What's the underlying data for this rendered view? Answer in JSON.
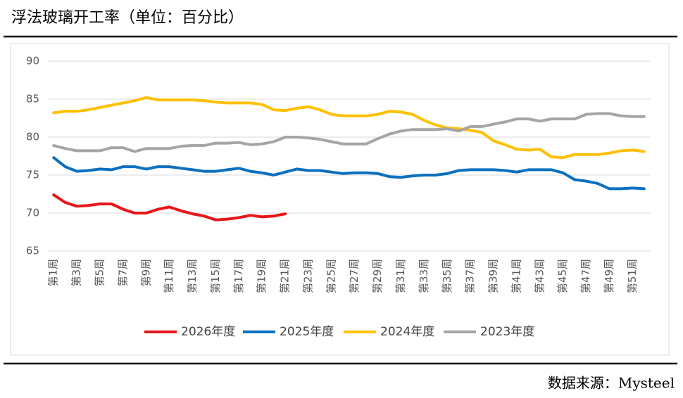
{
  "chart_data": {
    "type": "line",
    "title": "浮法玻璃开工率（单位：百分比）",
    "source": "数据来源：Mysteel",
    "categories": [
      "第1周",
      null,
      "第3周",
      null,
      "第5周",
      null,
      "第7周",
      null,
      "第9周",
      null,
      "第11周",
      null,
      "第13周",
      null,
      "第15周",
      null,
      "第17周",
      null,
      "第19周",
      null,
      "第21周",
      null,
      "第23周",
      null,
      "第25周",
      null,
      "第27周",
      null,
      "第29周",
      null,
      "第31周",
      null,
      "第33周",
      null,
      "第35周",
      null,
      "第37周",
      null,
      "第39周",
      null,
      "第41周",
      null,
      "第43周",
      null,
      "第45周",
      null,
      "第47周",
      null,
      "第49周",
      null,
      "第51周",
      null
    ],
    "series": [
      {
        "name": "2026年度",
        "color": "#e8161b",
        "values": [
          72.4,
          71.4,
          70.9,
          71.0,
          71.2,
          71.2,
          70.5,
          70.0,
          70.0,
          70.5,
          70.8,
          70.3,
          69.9,
          69.6,
          69.1,
          69.2,
          69.4,
          69.7,
          69.5,
          69.6,
          69.9,
          null,
          null,
          null,
          null,
          null,
          null,
          null,
          null,
          null,
          null,
          null,
          null,
          null,
          null,
          null,
          null,
          null,
          null,
          null,
          null,
          null,
          null,
          null,
          null,
          null,
          null,
          null,
          null,
          null,
          null,
          null
        ]
      },
      {
        "name": "2025年度",
        "color": "#0a70c0",
        "values": [
          77.3,
          76.1,
          75.5,
          75.6,
          75.8,
          75.7,
          76.1,
          76.1,
          75.8,
          76.1,
          76.1,
          75.9,
          75.7,
          75.5,
          75.5,
          75.7,
          75.9,
          75.5,
          75.3,
          75.0,
          75.4,
          75.8,
          75.6,
          75.6,
          75.4,
          75.2,
          75.3,
          75.3,
          75.2,
          74.8,
          74.7,
          74.9,
          75.0,
          75.0,
          75.2,
          75.6,
          75.7,
          75.7,
          75.7,
          75.6,
          75.4,
          75.7,
          75.7,
          75.7,
          75.3,
          74.4,
          74.2,
          73.9,
          73.2,
          73.2,
          73.3,
          73.2
        ]
      },
      {
        "name": "2024年度",
        "color": "#ffc000",
        "values": [
          83.2,
          83.4,
          83.4,
          83.6,
          83.9,
          84.2,
          84.5,
          84.8,
          85.2,
          84.9,
          84.9,
          84.9,
          84.9,
          84.8,
          84.6,
          84.5,
          84.5,
          84.5,
          84.3,
          83.6,
          83.5,
          83.8,
          84.0,
          83.6,
          83.0,
          82.8,
          82.8,
          82.8,
          83.0,
          83.4,
          83.3,
          83.0,
          82.2,
          81.6,
          81.2,
          81.1,
          80.9,
          80.6,
          79.5,
          79.0,
          78.4,
          78.3,
          78.4,
          77.4,
          77.3,
          77.7,
          77.7,
          77.7,
          77.9,
          78.2,
          78.3,
          78.1
        ]
      },
      {
        "name": "2023年度",
        "color": "#a5a5a5",
        "values": [
          78.9,
          78.5,
          78.2,
          78.2,
          78.2,
          78.6,
          78.6,
          78.1,
          78.5,
          78.5,
          78.5,
          78.8,
          78.9,
          78.9,
          79.2,
          79.2,
          79.3,
          79.0,
          79.1,
          79.4,
          80.0,
          80.0,
          79.9,
          79.7,
          79.4,
          79.1,
          79.1,
          79.1,
          79.8,
          80.4,
          80.8,
          81.0,
          81.0,
          81.0,
          81.1,
          80.8,
          81.4,
          81.4,
          81.7,
          82.0,
          82.4,
          82.4,
          82.1,
          82.4,
          82.4,
          82.4,
          83.0,
          83.1,
          83.1,
          82.8,
          82.7,
          82.7
        ]
      }
    ],
    "ylim": [
      65,
      90
    ],
    "yticks": [
      65,
      70,
      75,
      80,
      85,
      90
    ],
    "grid": true,
    "legend": "bottom"
  }
}
